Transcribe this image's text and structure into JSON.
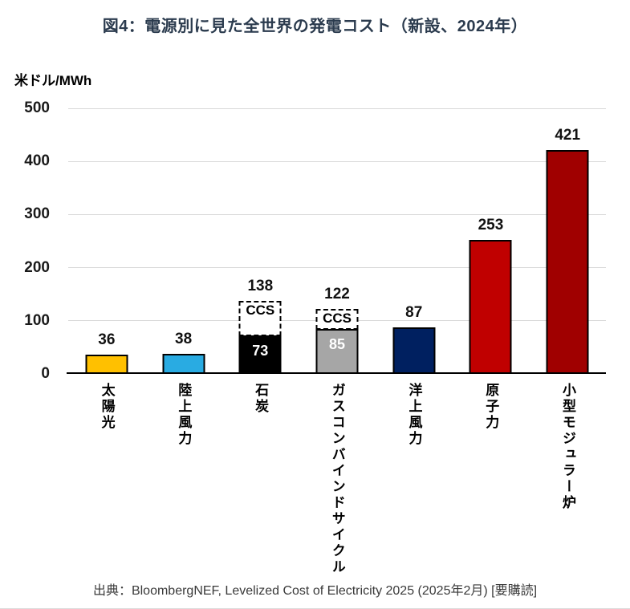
{
  "title": "図4：電源別に見た全世界の発電コスト（新設、2024年）",
  "unit_label": "米ドル/MWh",
  "source": "出典：BloombergNEF, Levelized Cost of Electricity 2025 (2025年2月) [要購読]",
  "colors": {
    "title_text": "#2B3B4E",
    "gridline": "#D9D9D9",
    "axis": "#000000",
    "solar": "#FFC000",
    "onshore_wind": "#29ABE2",
    "coal": "#000000",
    "gas_cc": "#A6A6A6",
    "offshore_wind": "#002060",
    "nuclear": "#C00000",
    "smr": "#A00000"
  },
  "chart_data": {
    "type": "bar",
    "title": "図4：電源別に見た全世界の発電コスト（新設、2024年）",
    "xlabel": "",
    "ylabel": "米ドル/MWh",
    "ylim": [
      0,
      500
    ],
    "yticks": [
      0,
      100,
      200,
      300,
      400,
      500
    ],
    "grid": true,
    "legend": "none",
    "categories": [
      "太陽光",
      "陸上風力",
      "石炭",
      "ガスコンバインドサイクル",
      "洋上風力",
      "原子力",
      "小型モジュラー炉"
    ],
    "values": [
      36,
      38,
      138,
      122,
      87,
      253,
      421
    ],
    "bars": [
      {
        "category": "太陽光",
        "total": 36,
        "total_label": "36",
        "solid": 36,
        "color": "#FFC000"
      },
      {
        "category": "陸上風力",
        "total": 38,
        "total_label": "38",
        "solid": 38,
        "color": "#29ABE2"
      },
      {
        "category": "石炭",
        "total": 138,
        "total_label": "138",
        "solid": 73,
        "solid_label": "73",
        "ccs_label": "CCS",
        "color": "#000000"
      },
      {
        "category": "ガスコンバインドサイクル",
        "total": 122,
        "total_label": "122",
        "solid": 85,
        "solid_label": "85",
        "ccs_label": "CCS",
        "color": "#A6A6A6"
      },
      {
        "category": "洋上風力",
        "total": 87,
        "total_label": "87",
        "solid": 87,
        "color": "#002060"
      },
      {
        "category": "原子力",
        "total": 253,
        "total_label": "253",
        "solid": 253,
        "color": "#C00000"
      },
      {
        "category": "小型モジュラー炉",
        "total": 421,
        "total_label": "421",
        "solid": 421,
        "color": "#A00000"
      }
    ],
    "annotations": [
      "CCS部分は破線枠で表示（石炭・ガスコンバインドサイクル）"
    ]
  }
}
